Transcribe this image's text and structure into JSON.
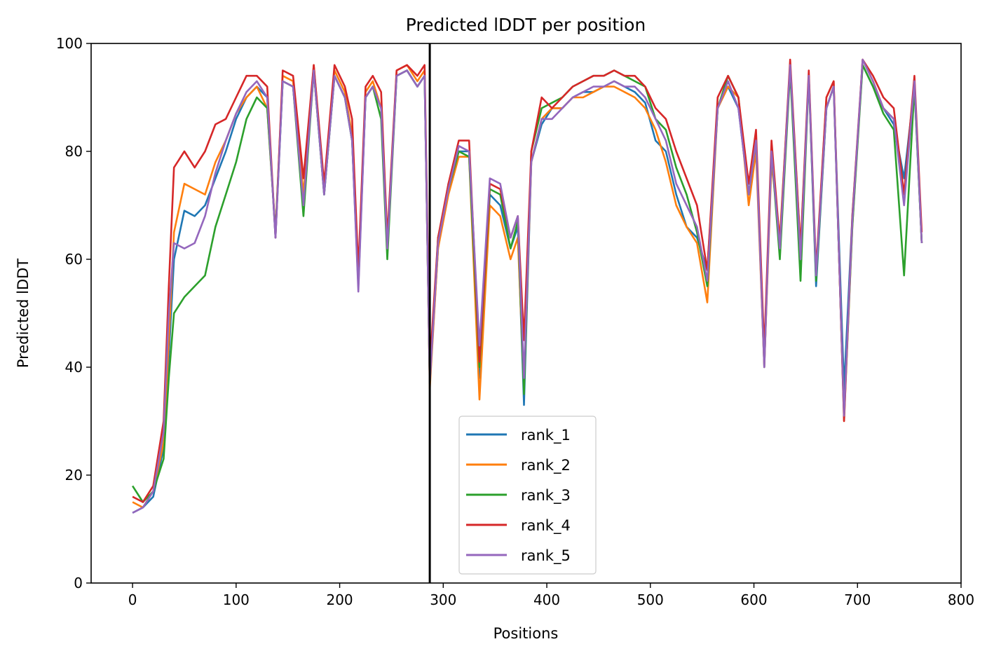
{
  "chart_data": {
    "type": "line",
    "title": "Predicted lDDT per position",
    "xlabel": "Positions",
    "ylabel": "Predicted lDDT",
    "xlim": [
      -40,
      800
    ],
    "ylim": [
      0,
      100
    ],
    "xticks": [
      0,
      100,
      200,
      300,
      400,
      500,
      600,
      700,
      800
    ],
    "yticks": [
      0,
      20,
      40,
      60,
      80,
      100
    ],
    "grid": false,
    "legend_position": "lower-center",
    "chain_break_x": 287,
    "colors": {
      "rank_1": "#1f77b4",
      "rank_2": "#ff7f0e",
      "rank_3": "#2ca02c",
      "rank_4": "#d62728",
      "rank_5": "#9467bd",
      "chain_break": "#000000"
    },
    "x": [
      0,
      10,
      20,
      30,
      35,
      40,
      50,
      60,
      70,
      80,
      90,
      100,
      110,
      120,
      130,
      138,
      145,
      155,
      165,
      175,
      185,
      195,
      205,
      212,
      218,
      225,
      232,
      240,
      246,
      255,
      265,
      275,
      282,
      287,
      295,
      305,
      315,
      325,
      335,
      345,
      355,
      365,
      372,
      378,
      385,
      395,
      405,
      415,
      425,
      435,
      445,
      455,
      465,
      475,
      485,
      495,
      505,
      515,
      525,
      535,
      545,
      555,
      565,
      575,
      585,
      595,
      602,
      610,
      617,
      625,
      635,
      645,
      653,
      660,
      670,
      677,
      687,
      695,
      705,
      715,
      725,
      735,
      745,
      755,
      762
    ],
    "series": [
      {
        "name": "rank_1",
        "values": [
          13,
          14,
          16,
          25,
          42,
          60,
          69,
          68,
          70,
          75,
          80,
          86,
          90,
          92,
          90,
          64,
          93,
          92,
          70,
          95,
          72,
          94,
          90,
          82,
          55,
          90,
          92,
          88,
          62,
          94,
          95,
          92,
          94,
          37,
          62,
          74,
          80,
          80,
          38,
          72,
          70,
          62,
          66,
          33,
          78,
          85,
          88,
          88,
          90,
          91,
          91,
          92,
          93,
          92,
          91,
          89,
          82,
          80,
          72,
          66,
          64,
          58,
          88,
          92,
          88,
          72,
          82,
          40,
          80,
          62,
          96,
          60,
          94,
          55,
          88,
          92,
          36,
          68,
          96,
          92,
          88,
          85,
          75,
          92,
          63
        ]
      },
      {
        "name": "rank_2",
        "values": [
          15,
          14,
          17,
          26,
          45,
          65,
          74,
          73,
          72,
          78,
          82,
          87,
          90,
          92,
          88,
          65,
          94,
          93,
          72,
          96,
          73,
          95,
          91,
          83,
          56,
          91,
          93,
          88,
          62,
          95,
          96,
          93,
          95,
          36,
          62,
          72,
          79,
          79,
          34,
          70,
          68,
          60,
          64,
          36,
          78,
          86,
          88,
          88,
          90,
          90,
          91,
          92,
          92,
          91,
          90,
          88,
          84,
          78,
          70,
          66,
          63,
          52,
          88,
          92,
          90,
          70,
          80,
          40,
          78,
          64,
          96,
          62,
          94,
          57,
          90,
          93,
          30,
          66,
          97,
          93,
          88,
          86,
          72,
          93,
          63
        ]
      },
      {
        "name": "rank_3",
        "values": [
          18,
          15,
          17,
          23,
          38,
          50,
          53,
          55,
          57,
          66,
          72,
          78,
          86,
          90,
          88,
          65,
          93,
          92,
          68,
          95,
          72,
          94,
          90,
          82,
          56,
          90,
          92,
          86,
          60,
          94,
          95,
          92,
          94,
          37,
          64,
          73,
          80,
          79,
          40,
          73,
          72,
          62,
          67,
          35,
          80,
          88,
          89,
          90,
          92,
          93,
          94,
          94,
          95,
          94,
          93,
          92,
          86,
          84,
          77,
          72,
          65,
          55,
          88,
          94,
          90,
          72,
          82,
          42,
          80,
          60,
          95,
          56,
          94,
          56,
          88,
          92,
          31,
          66,
          96,
          92,
          87,
          84,
          57,
          92,
          63
        ]
      },
      {
        "name": "rank_4",
        "values": [
          16,
          15,
          18,
          30,
          55,
          77,
          80,
          77,
          80,
          85,
          86,
          90,
          94,
          94,
          92,
          64,
          95,
          94,
          75,
          96,
          74,
          96,
          92,
          86,
          58,
          92,
          94,
          91,
          64,
          95,
          96,
          94,
          96,
          40,
          64,
          74,
          82,
          82,
          41,
          74,
          73,
          64,
          68,
          45,
          80,
          90,
          88,
          90,
          92,
          93,
          94,
          94,
          95,
          94,
          94,
          92,
          88,
          86,
          80,
          75,
          70,
          58,
          90,
          94,
          90,
          74,
          84,
          43,
          82,
          63,
          97,
          62,
          95,
          58,
          90,
          93,
          30,
          68,
          97,
          94,
          90,
          88,
          72,
          94,
          65
        ]
      },
      {
        "name": "rank_5",
        "values": [
          13,
          14,
          17,
          28,
          50,
          63,
          62,
          63,
          68,
          76,
          82,
          87,
          91,
          93,
          90,
          64,
          93,
          92,
          70,
          95,
          72,
          94,
          90,
          82,
          54,
          90,
          92,
          88,
          62,
          94,
          95,
          92,
          94,
          37,
          63,
          73,
          81,
          80,
          44,
          75,
          74,
          64,
          68,
          38,
          78,
          86,
          86,
          88,
          90,
          91,
          92,
          92,
          93,
          92,
          92,
          90,
          86,
          82,
          74,
          70,
          66,
          56,
          88,
          93,
          88,
          72,
          82,
          40,
          80,
          62,
          96,
          60,
          94,
          57,
          88,
          92,
          31,
          67,
          97,
          93,
          88,
          86,
          70,
          93,
          63
        ]
      }
    ]
  }
}
